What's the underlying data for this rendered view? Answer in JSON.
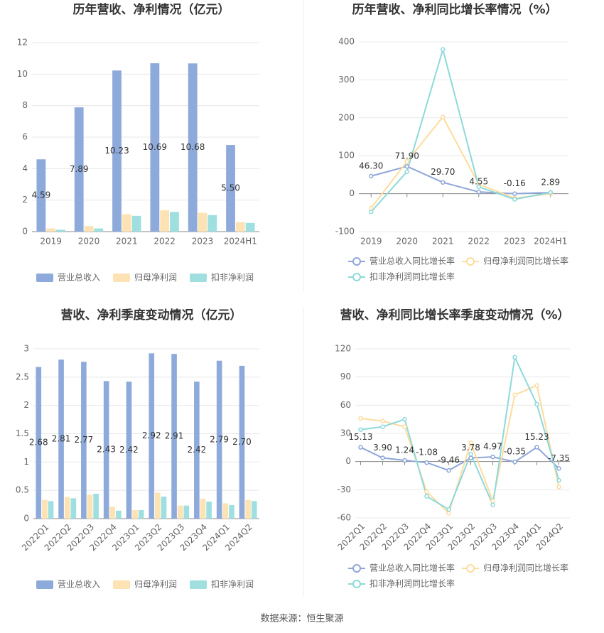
{
  "chart_data": [
    {
      "type": "bar",
      "title": "历年营收、净利情况（亿元）",
      "categories": [
        "2019",
        "2020",
        "2021",
        "2022",
        "2023",
        "2024H1"
      ],
      "series": [
        {
          "name": "营业总收入",
          "color": "#8eaadb",
          "values": [
            4.59,
            7.89,
            10.23,
            10.69,
            10.68,
            5.5
          ],
          "value_labels": [
            "4.59",
            "7.89",
            "10.23",
            "10.69",
            "10.68",
            "5.50"
          ]
        },
        {
          "name": "归母净利润",
          "color": "#fde2b4",
          "values": [
            0.2,
            0.35,
            1.1,
            1.35,
            1.2,
            0.6
          ]
        },
        {
          "name": "扣非净利润",
          "color": "#9fdfe0",
          "values": [
            0.12,
            0.2,
            1.0,
            1.25,
            1.05,
            0.55
          ]
        }
      ],
      "ylim": [
        0,
        12
      ],
      "yticks": [
        0,
        2,
        4,
        6,
        8,
        10,
        12
      ],
      "grid": true
    },
    {
      "type": "line",
      "title": "历年营收、净利同比增长率情况（%）",
      "categories": [
        "2019",
        "2020",
        "2021",
        "2022",
        "2023",
        "2024H1"
      ],
      "series": [
        {
          "name": "营业总收入同比增长率",
          "color": "#8ea6d8",
          "values": [
            46.3,
            71.9,
            29.7,
            4.55,
            -0.16,
            2.89
          ],
          "value_labels": [
            "46.30",
            "71.90",
            "29.70",
            "4.55",
            "-0.16",
            "2.89"
          ]
        },
        {
          "name": "归母净利润同比增长率",
          "color": "#fddc9e",
          "values": [
            -38,
            85,
            202,
            25,
            -12,
            0
          ]
        },
        {
          "name": "扣非净利润同比增长率",
          "color": "#8ed9da",
          "values": [
            -48,
            58,
            380,
            18,
            -15,
            3
          ]
        }
      ],
      "ylim": [
        -100,
        400
      ],
      "yticks": [
        -100,
        0,
        100,
        200,
        300,
        400
      ],
      "grid": true
    },
    {
      "type": "bar",
      "title": "营收、净利季度变动情况（亿元）",
      "categories": [
        "2022Q1",
        "2022Q2",
        "2022Q3",
        "2022Q4",
        "2023Q1",
        "2023Q2",
        "2023Q3",
        "2023Q4",
        "2024Q1",
        "2024Q2"
      ],
      "series": [
        {
          "name": "营业总收入",
          "color": "#8eaadb",
          "values": [
            2.68,
            2.81,
            2.77,
            2.43,
            2.42,
            2.92,
            2.91,
            2.42,
            2.79,
            2.7
          ],
          "value_labels": [
            "2.68",
            "2.81",
            "2.77",
            "2.43",
            "2.42",
            "2.92",
            "2.91",
            "2.42",
            "2.79",
            "2.70"
          ]
        },
        {
          "name": "归母净利润",
          "color": "#fde2b4",
          "values": [
            0.33,
            0.38,
            0.42,
            0.21,
            0.15,
            0.46,
            0.23,
            0.35,
            0.27,
            0.33
          ]
        },
        {
          "name": "扣非净利润",
          "color": "#9fdfe0",
          "values": [
            0.31,
            0.36,
            0.44,
            0.14,
            0.15,
            0.39,
            0.23,
            0.3,
            0.24,
            0.31
          ]
        }
      ],
      "ylim": [
        0,
        3
      ],
      "yticks": [
        0,
        0.5,
        1,
        1.5,
        2,
        2.5,
        3
      ],
      "grid": true
    },
    {
      "type": "line",
      "title": "营收、净利同比增长率季度变动情况（%）",
      "categories": [
        "2022Q1",
        "2022Q2",
        "2022Q3",
        "2022Q4",
        "2023Q1",
        "2023Q2",
        "2023Q3",
        "2023Q4",
        "2024Q1",
        "2024Q2"
      ],
      "series": [
        {
          "name": "营业总收入同比增长率",
          "color": "#8ea6d8",
          "values": [
            15.13,
            3.9,
            1.24,
            -1.08,
            -9.46,
            3.78,
            4.97,
            -0.35,
            15.23,
            -7.35
          ],
          "value_labels": [
            "15.13",
            "3.90",
            "1.24",
            "-1.08",
            "-9.46",
            "3.78",
            "4.97",
            "-0.35",
            "15.23",
            "-7.35"
          ]
        },
        {
          "name": "归母净利润同比增长率",
          "color": "#fddc9e",
          "values": [
            46,
            43,
            37,
            -32,
            -55,
            20,
            -42,
            71,
            81,
            -27
          ]
        },
        {
          "name": "扣非净利润同比增长率",
          "color": "#8ed9da",
          "values": [
            34,
            37,
            45,
            -37,
            -51,
            8,
            -46,
            111,
            61,
            -20
          ]
        }
      ],
      "ylim": [
        -60,
        120
      ],
      "yticks": [
        -60,
        -30,
        0,
        30,
        60,
        90,
        120
      ],
      "grid": true
    }
  ],
  "source": "数据来源：恒生聚源"
}
